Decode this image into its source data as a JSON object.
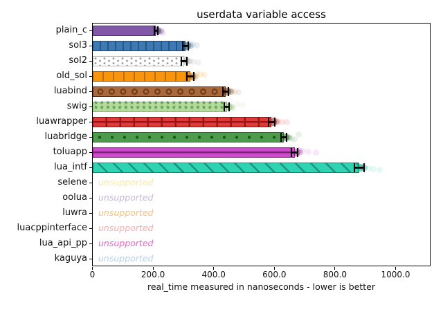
{
  "figure": {
    "background": "#ffffff",
    "axis_color": "#000000"
  },
  "chart_data": {
    "type": "bar",
    "orientation": "horizontal",
    "title": "userdata variable access",
    "xlabel": "real_time measured in nanoseconds - lower is better",
    "unsupported_label": "unsupported",
    "xlim": [
      0,
      1116
    ],
    "grid": false,
    "legend": "none",
    "xticks": [
      {
        "value": 0,
        "label": "0"
      },
      {
        "value": 200,
        "label": "200.0"
      },
      {
        "value": 400,
        "label": "400.0"
      },
      {
        "value": 600,
        "label": "600.0"
      },
      {
        "value": 800,
        "label": "800.0"
      },
      {
        "value": 1000,
        "label": "1000.0"
      }
    ],
    "rows": [
      {
        "name": "plain_c",
        "value": 210,
        "error": 8,
        "fill": "#8257a8",
        "edge": "#53356e",
        "hatch": "none",
        "hatch_color": "#53356e",
        "samples": [
          203,
          206,
          209,
          211,
          213,
          216,
          220,
          226,
          233
        ]
      },
      {
        "name": "sol3",
        "value": 307,
        "error": 11,
        "fill": "#3d7ab5",
        "edge": "#1f4a70",
        "hatch": "|",
        "hatch_color": "#27567f",
        "period": 11,
        "samples": [
          299,
          303,
          306,
          309,
          312,
          316,
          322,
          331,
          344
        ]
      },
      {
        "name": "sol2",
        "value": 303,
        "error": 11,
        "fill": "#fdfdfd",
        "edge": "#bbbbbb",
        "hatch": "..",
        "hatch_color": "#9a9a9a",
        "sample_color": "#9a9a9a",
        "samples": [
          296,
          300,
          303,
          306,
          310,
          315,
          323,
          334,
          349
        ]
      },
      {
        "name": "old_sol",
        "value": 323,
        "error": 14,
        "fill": "#f9950d",
        "edge": "#9c5a02",
        "hatch": "|",
        "hatch_color": "#bc6d03",
        "period": 15,
        "samples": [
          314,
          319,
          323,
          327,
          331,
          337,
          345,
          356,
          369
        ]
      },
      {
        "name": "luabind",
        "value": 439,
        "error": 11,
        "fill": "#a9693e",
        "edge": "#572b0e",
        "hatch": "o",
        "hatch_color": "#6d3a15",
        "samples": [
          431,
          435,
          439,
          442,
          446,
          452,
          459,
          469,
          482
        ]
      },
      {
        "name": "swig",
        "value": 443,
        "error": 11,
        "fill": "#b7db9f",
        "edge": "#85bb72",
        "hatch": "*",
        "hatch_color": "#61a052",
        "samples": [
          436,
          440,
          443,
          447,
          452,
          458,
          466,
          479,
          495
        ]
      },
      {
        "name": "luawrapper",
        "value": 591,
        "error": 13,
        "fill": "#df3a3a",
        "edge": "#871010",
        "hatch": "+",
        "hatch_color": "#9d1414",
        "period": 20,
        "samples": [
          582,
          587,
          591,
          594,
          599,
          605,
          613,
          626,
          641
        ]
      },
      {
        "name": "luabridge",
        "value": 632,
        "error": 11,
        "fill": "#4d9b4d",
        "edge": "#2a6b2a",
        "hatch": ".",
        "hatch_color": "#195519",
        "samples": [
          624,
          628,
          632,
          636,
          641,
          647,
          655,
          666,
          680
        ]
      },
      {
        "name": "toluapp",
        "value": 667,
        "error": 13,
        "fill": "#cc4ccc",
        "edge": "#8c248c",
        "hatch": "-",
        "hatch_color": "#7c1d7c",
        "samples": [
          658,
          663,
          667,
          671,
          677,
          684,
          695,
          713,
          737
        ]
      },
      {
        "name": "lua_intf",
        "value": 880,
        "error": 18,
        "fill": "#2dd3b3",
        "edge": "#0f8371",
        "hatch": "\\",
        "hatch_color": "#1d937e",
        "period": 13,
        "samples": [
          867,
          873,
          879,
          884,
          890,
          898,
          910,
          928,
          948
        ]
      },
      {
        "name": "selene",
        "unsupported": true,
        "label_color": "#f9eb9e"
      },
      {
        "name": "oolua",
        "unsupported": true,
        "label_color": "#c7b6dc"
      },
      {
        "name": "luwra",
        "unsupported": true,
        "label_color": "#fbbf77"
      },
      {
        "name": "luacppinterface",
        "unsupported": true,
        "label_color": "#fbaaad"
      },
      {
        "name": "lua_api_pp",
        "unsupported": true,
        "label_color": "#f161cb"
      },
      {
        "name": "kaguya",
        "unsupported": true,
        "label_color": "#b4d2e8"
      }
    ]
  }
}
